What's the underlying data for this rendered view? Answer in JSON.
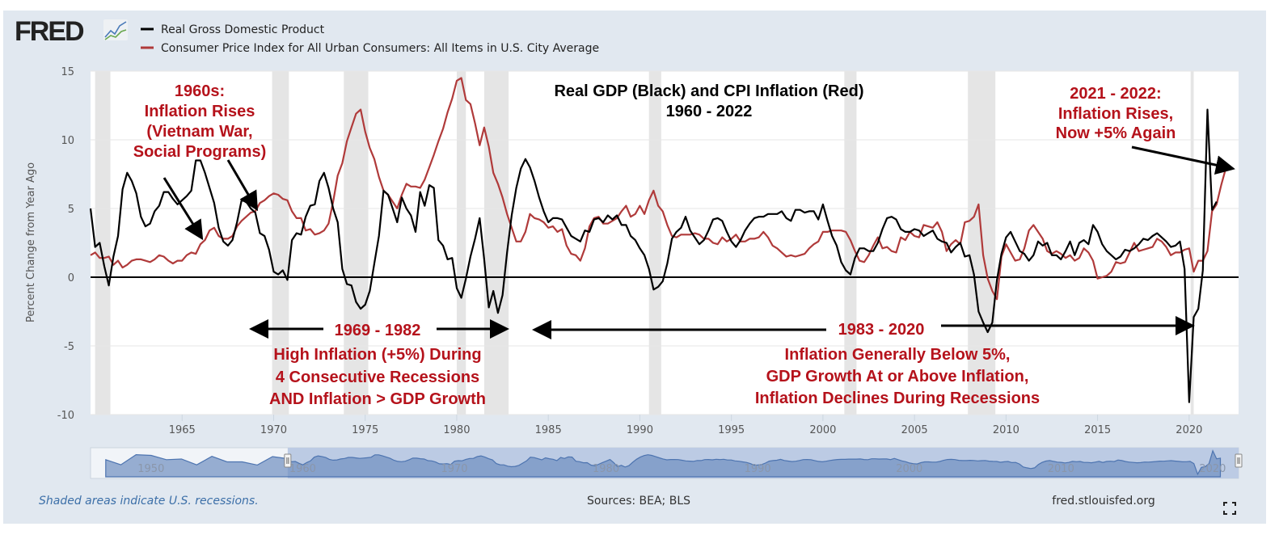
{
  "header": {
    "logo_text": "FRED",
    "legend": [
      {
        "label": "Real Gross Domestic Product",
        "color": "#000000"
      },
      {
        "label": "Consumer Price Index for All Urban Consumers: All Items in U.S. City Average",
        "color": "#b03a3a"
      }
    ]
  },
  "chart_data": {
    "type": "line",
    "title": "Real GDP (Black) and CPI Inflation (Red)",
    "subtitle": "1960 - 2022",
    "ylabel": "Percent Change from Year Ago",
    "xlabel": "",
    "xlim": [
      1960,
      2022.7
    ],
    "ylim": [
      -10,
      15
    ],
    "y_ticks": [
      "15",
      "10",
      "5",
      "0",
      "-5",
      "-10"
    ],
    "x_ticks": [
      "1965",
      "1970",
      "1975",
      "1980",
      "1985",
      "1990",
      "1995",
      "2000",
      "2005",
      "2010",
      "2015",
      "2020"
    ],
    "grid": true,
    "legend_placement": "top-left",
    "recessions": [
      [
        "1960-04",
        "1961-02"
      ],
      [
        "1969-12",
        "1970-11"
      ],
      [
        "1973-11",
        "1975-03"
      ],
      [
        "1980-01",
        "1980-07"
      ],
      [
        "1981-07",
        "1982-11"
      ],
      [
        "1990-07",
        "1991-03"
      ],
      [
        "2001-03",
        "2001-11"
      ],
      [
        "2007-12",
        "2009-06"
      ],
      [
        "2020-02",
        "2020-04"
      ]
    ],
    "series": [
      {
        "name": "Real Gross Domestic Product",
        "color": "#000000",
        "start": "1960-Q1",
        "frequency": "quarterly",
        "values": [
          5.0,
          2.2,
          2.5,
          0.8,
          -0.6,
          1.5,
          3.0,
          6.4,
          7.6,
          7.0,
          6.1,
          4.4,
          3.7,
          3.9,
          4.8,
          5.2,
          6.2,
          6.2,
          5.7,
          5.3,
          5.6,
          5.9,
          6.3,
          8.5,
          8.5,
          7.6,
          6.5,
          5.4,
          3.6,
          2.6,
          2.3,
          2.7,
          4.0,
          5.6,
          5.5,
          5.0,
          4.7,
          3.2,
          3.0,
          2.0,
          0.4,
          0.2,
          0.5,
          -0.2,
          2.7,
          3.2,
          3.1,
          4.4,
          5.2,
          5.3,
          7.0,
          7.6,
          6.5,
          5.0,
          4.0,
          0.6,
          -0.5,
          -0.6,
          -1.8,
          -2.3,
          -2.0,
          -1.0,
          1.0,
          3.0,
          6.3,
          6.0,
          5.0,
          4.0,
          5.8,
          5.0,
          4.5,
          3.3,
          6.2,
          5.2,
          6.7,
          6.5,
          2.7,
          2.3,
          1.3,
          1.4,
          -0.8,
          -1.5,
          -0.1,
          1.5,
          2.8,
          4.3,
          1.3,
          -2.2,
          -1.0,
          -2.6,
          -1.3,
          1.8,
          4.5,
          6.5,
          7.9,
          8.6,
          8.0,
          7.0,
          5.8,
          4.8,
          4.0,
          4.3,
          4.3,
          4.2,
          3.6,
          3.0,
          2.8,
          2.6,
          3.4,
          3.3,
          4.2,
          4.3,
          4.0,
          4.5,
          4.2,
          4.5,
          3.8,
          3.8,
          3.0,
          2.7,
          2.1,
          1.6,
          0.6,
          -0.9,
          -0.7,
          -0.3,
          1.0,
          2.8,
          3.3,
          3.6,
          4.4,
          3.4,
          2.9,
          2.4,
          2.7,
          3.4,
          4.2,
          4.3,
          4.1,
          3.3,
          2.6,
          2.2,
          2.7,
          3.4,
          3.9,
          4.3,
          4.4,
          4.4,
          4.6,
          4.6,
          4.6,
          4.8,
          4.3,
          4.1,
          4.9,
          4.9,
          4.7,
          4.8,
          4.8,
          4.2,
          5.3,
          4.1,
          3.0,
          2.3,
          1.1,
          0.5,
          0.2,
          1.4,
          2.1,
          2.1,
          1.9,
          1.9,
          2.5,
          3.5,
          4.3,
          4.4,
          4.2,
          3.5,
          3.3,
          3.3,
          3.5,
          3.4,
          3.0,
          3.2,
          3.4,
          2.8,
          2.6,
          2.5,
          1.8,
          2.2,
          2.5,
          1.5,
          1.6,
          0.2,
          -2.5,
          -3.3,
          -4.0,
          -3.3,
          -0.2,
          1.7,
          2.9,
          3.3,
          2.6,
          1.9,
          1.7,
          1.2,
          1.6,
          2.6,
          2.3,
          2.5,
          1.6,
          1.6,
          1.3,
          1.9,
          2.6,
          1.6,
          2.5,
          2.7,
          2.4,
          3.8,
          3.3,
          2.4,
          1.9,
          1.6,
          1.3,
          1.5,
          2.0,
          1.9,
          2.1,
          2.4,
          2.8,
          2.7,
          3.0,
          3.2,
          2.9,
          2.6,
          2.2,
          2.3,
          2.6,
          0.6,
          -9.1,
          -2.9,
          -2.3,
          0.5,
          12.2,
          4.9,
          5.5
        ]
      },
      {
        "name": "Consumer Price Index for All Urban Consumers: All Items in U.S. City Average",
        "color": "#b03a3a",
        "start": "1960-Q1",
        "frequency": "quarterly",
        "values": [
          1.6,
          1.8,
          1.4,
          1.4,
          1.5,
          0.9,
          1.2,
          0.7,
          0.9,
          1.2,
          1.3,
          1.3,
          1.2,
          1.1,
          1.3,
          1.6,
          1.5,
          1.2,
          1.0,
          1.2,
          1.2,
          1.6,
          1.8,
          1.7,
          2.4,
          2.7,
          3.4,
          3.6,
          3.0,
          2.8,
          2.8,
          3.0,
          3.7,
          4.1,
          4.4,
          4.7,
          4.8,
          5.4,
          5.6,
          5.9,
          6.1,
          6.0,
          5.7,
          5.6,
          4.8,
          4.3,
          4.3,
          3.4,
          3.5,
          3.1,
          3.2,
          3.4,
          3.9,
          5.5,
          7.4,
          8.3,
          9.9,
          10.9,
          11.9,
          12.2,
          10.6,
          9.4,
          8.6,
          7.3,
          6.3,
          6.0,
          5.5,
          5.0,
          6.0,
          6.8,
          6.6,
          6.6,
          6.5,
          7.1,
          8.0,
          8.9,
          9.9,
          10.8,
          12.0,
          13.0,
          14.3,
          14.5,
          12.9,
          12.6,
          11.2,
          9.6,
          10.9,
          9.5,
          7.6,
          6.8,
          5.8,
          4.6,
          3.6,
          2.6,
          2.6,
          3.3,
          4.6,
          4.3,
          4.2,
          4.0,
          3.6,
          3.7,
          3.3,
          3.5,
          2.3,
          1.7,
          1.6,
          1.2,
          2.1,
          3.7,
          4.3,
          4.4,
          3.9,
          3.9,
          4.1,
          4.3,
          4.8,
          5.2,
          4.4,
          4.6,
          5.2,
          4.6,
          5.6,
          6.3,
          5.2,
          4.8,
          3.8,
          3.0,
          2.9,
          3.1,
          3.1,
          3.1,
          3.2,
          3.1,
          2.8,
          2.8,
          2.5,
          2.4,
          2.9,
          2.6,
          2.8,
          3.1,
          2.6,
          2.6,
          2.8,
          2.8,
          2.9,
          3.3,
          2.9,
          2.3,
          2.1,
          1.8,
          1.5,
          1.6,
          1.5,
          1.6,
          1.7,
          2.1,
          2.4,
          2.6,
          3.3,
          3.3,
          3.4,
          3.4,
          3.4,
          3.3,
          2.7,
          1.9,
          1.2,
          1.1,
          1.6,
          2.3,
          2.9,
          2.1,
          2.2,
          1.9,
          1.8,
          2.9,
          2.7,
          3.3,
          3.0,
          2.9,
          3.8,
          3.7,
          3.6,
          4.0,
          3.3,
          1.9,
          2.4,
          2.7,
          2.4,
          4.0,
          4.1,
          4.4,
          5.3,
          1.6,
          -0.1,
          -1.0,
          -1.6,
          1.5,
          2.4,
          1.8,
          1.2,
          1.3,
          2.1,
          3.4,
          3.8,
          3.3,
          2.8,
          1.9,
          1.7,
          1.9,
          1.7,
          1.4,
          1.6,
          1.2,
          1.4,
          2.1,
          1.8,
          1.2,
          -0.1,
          0.0,
          0.1,
          0.4,
          1.1,
          1.0,
          1.1,
          1.8,
          2.5,
          1.9,
          2.0,
          2.1,
          2.2,
          2.8,
          2.6,
          2.2,
          1.6,
          1.8,
          1.8,
          2.0,
          2.1,
          0.4,
          1.2,
          1.2,
          1.9,
          4.8,
          5.3,
          6.7,
          7.9
        ]
      }
    ],
    "annotations": {
      "sixties": [
        "1960s:",
        "Inflation Rises",
        "(Vietnam War,",
        "Social Programs)"
      ],
      "recent": [
        "2021 - 2022:",
        "Inflation Rises,",
        "Now +5% Again"
      ],
      "period1_range": "1969 - 1982",
      "period1_text": [
        "High Inflation (+5%) During",
        "4 Consecutive Recessions",
        "AND Inflation > GDP Growth"
      ],
      "period2_range": "1983 - 2020",
      "period2_text": [
        "Inflation Generally Below 5%,",
        "GDP Growth At or Above Inflation,",
        "Inflation Declines During Recessions"
      ],
      "color": "#b5121b"
    }
  },
  "navigator": {
    "range": [
      1947,
      2022.7
    ],
    "selected_start": 1960,
    "labels": [
      "1950",
      "1960",
      "1970",
      "1980",
      "1990",
      "2000",
      "2010",
      "2020"
    ],
    "pre1960_start": 1948,
    "pre1960_values": [
      4.1,
      -0.5,
      8.7,
      8.0,
      4.1,
      4.7,
      -0.6,
      7.1,
      2.1,
      2.1,
      -0.7,
      6.9
    ]
  },
  "footer": {
    "recession_note": "Shaded areas indicate U.S. recessions.",
    "sources": "Sources: BEA; BLS",
    "site": "fred.stlouisfed.org"
  }
}
